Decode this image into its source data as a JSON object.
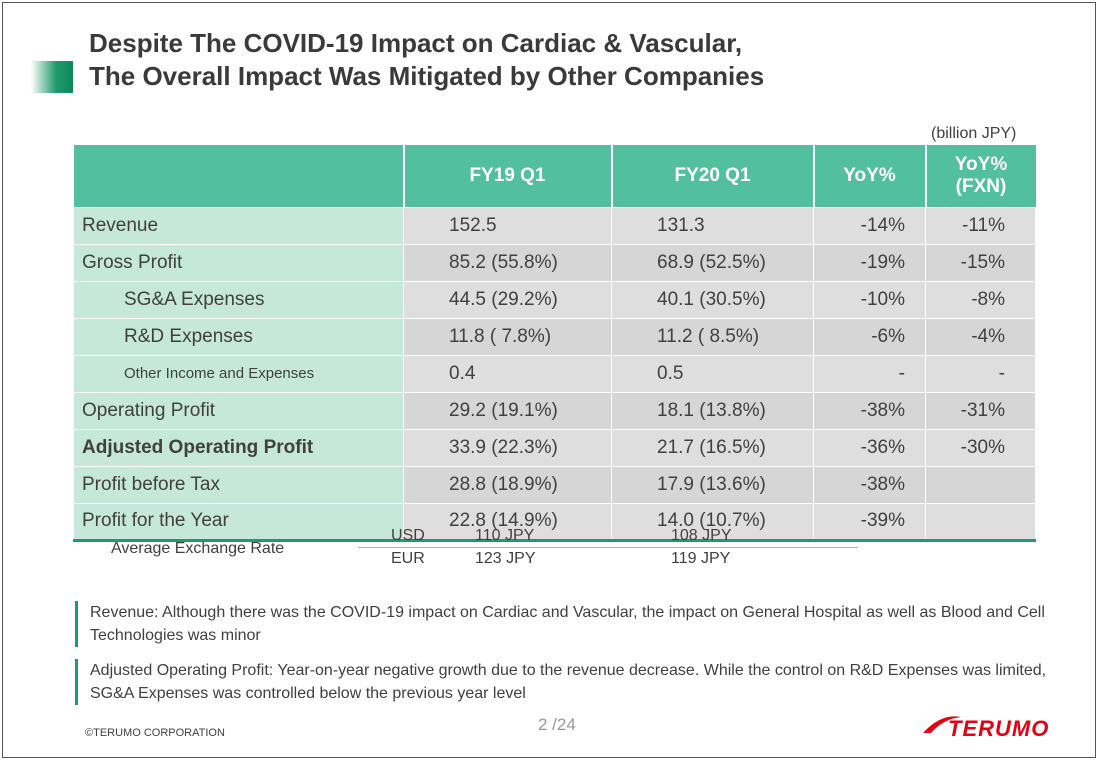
{
  "header": {
    "title_lines": [
      "Despite The COVID-19 Impact on Cardiac & Vascular,",
      "The Overall Impact Was Mitigated by Other Companies"
    ],
    "unit": "(billion JPY)"
  },
  "table": {
    "columns": [
      "FY19 Q1",
      "FY20 Q1",
      "YoY%",
      "YoY% (FXN)"
    ],
    "rows": [
      [
        "Revenue",
        "152.5",
        "131.3",
        "-14%",
        "-11%"
      ],
      [
        "Gross Profit",
        "85.2 (55.8%)",
        "68.9 (52.5%)",
        "-19%",
        "-15%"
      ],
      [
        "SG&A Expenses",
        "44.5 (29.2%)",
        "40.1 (30.5%)",
        "-10%",
        "-8%"
      ],
      [
        "R&D Expenses",
        "11.8 ( 7.8%)",
        "11.2 ( 8.5%)",
        "-6%",
        "-4%"
      ],
      [
        "Other Income and Expenses",
        "0.4",
        "0.5",
        "-",
        "-"
      ],
      [
        "Operating Profit",
        "29.2 (19.1%)",
        "18.1 (13.8%)",
        "-38%",
        "-31%"
      ],
      [
        "Adjusted Operating Profit",
        "33.9 (22.3%)",
        "21.7 (16.5%)",
        "-36%",
        "-30%"
      ],
      [
        "Profit before Tax",
        "28.8 (18.9%)",
        "17.9 (13.6%)",
        "-38%"
      ],
      [
        "Profit for the Year",
        "22.8 (14.9%)",
        "14.0 (10.7%)",
        "-39%"
      ]
    ]
  },
  "exchange": {
    "label": "Average Exchange Rate",
    "rates": [
      [
        "USD",
        "110 JPY",
        "108 JPY"
      ],
      [
        "EUR",
        "123 JPY",
        "119 JPY"
      ]
    ]
  },
  "notes": [
    "Revenue: Although there was the COVID-19 impact on Cardiac and Vascular, the impact on General Hospital as well as Blood and Cell Technologies was minor",
    "Adjusted Operating Profit: Year-on-year  negative growth due to the revenue decrease. While the control on R&D Expenses was limited, SG&A Expenses was controlled below the previous year level"
  ],
  "footer": {
    "copyright": "©TERUMO CORPORATION",
    "page": "2 /24",
    "logo": "TERUMO"
  }
}
